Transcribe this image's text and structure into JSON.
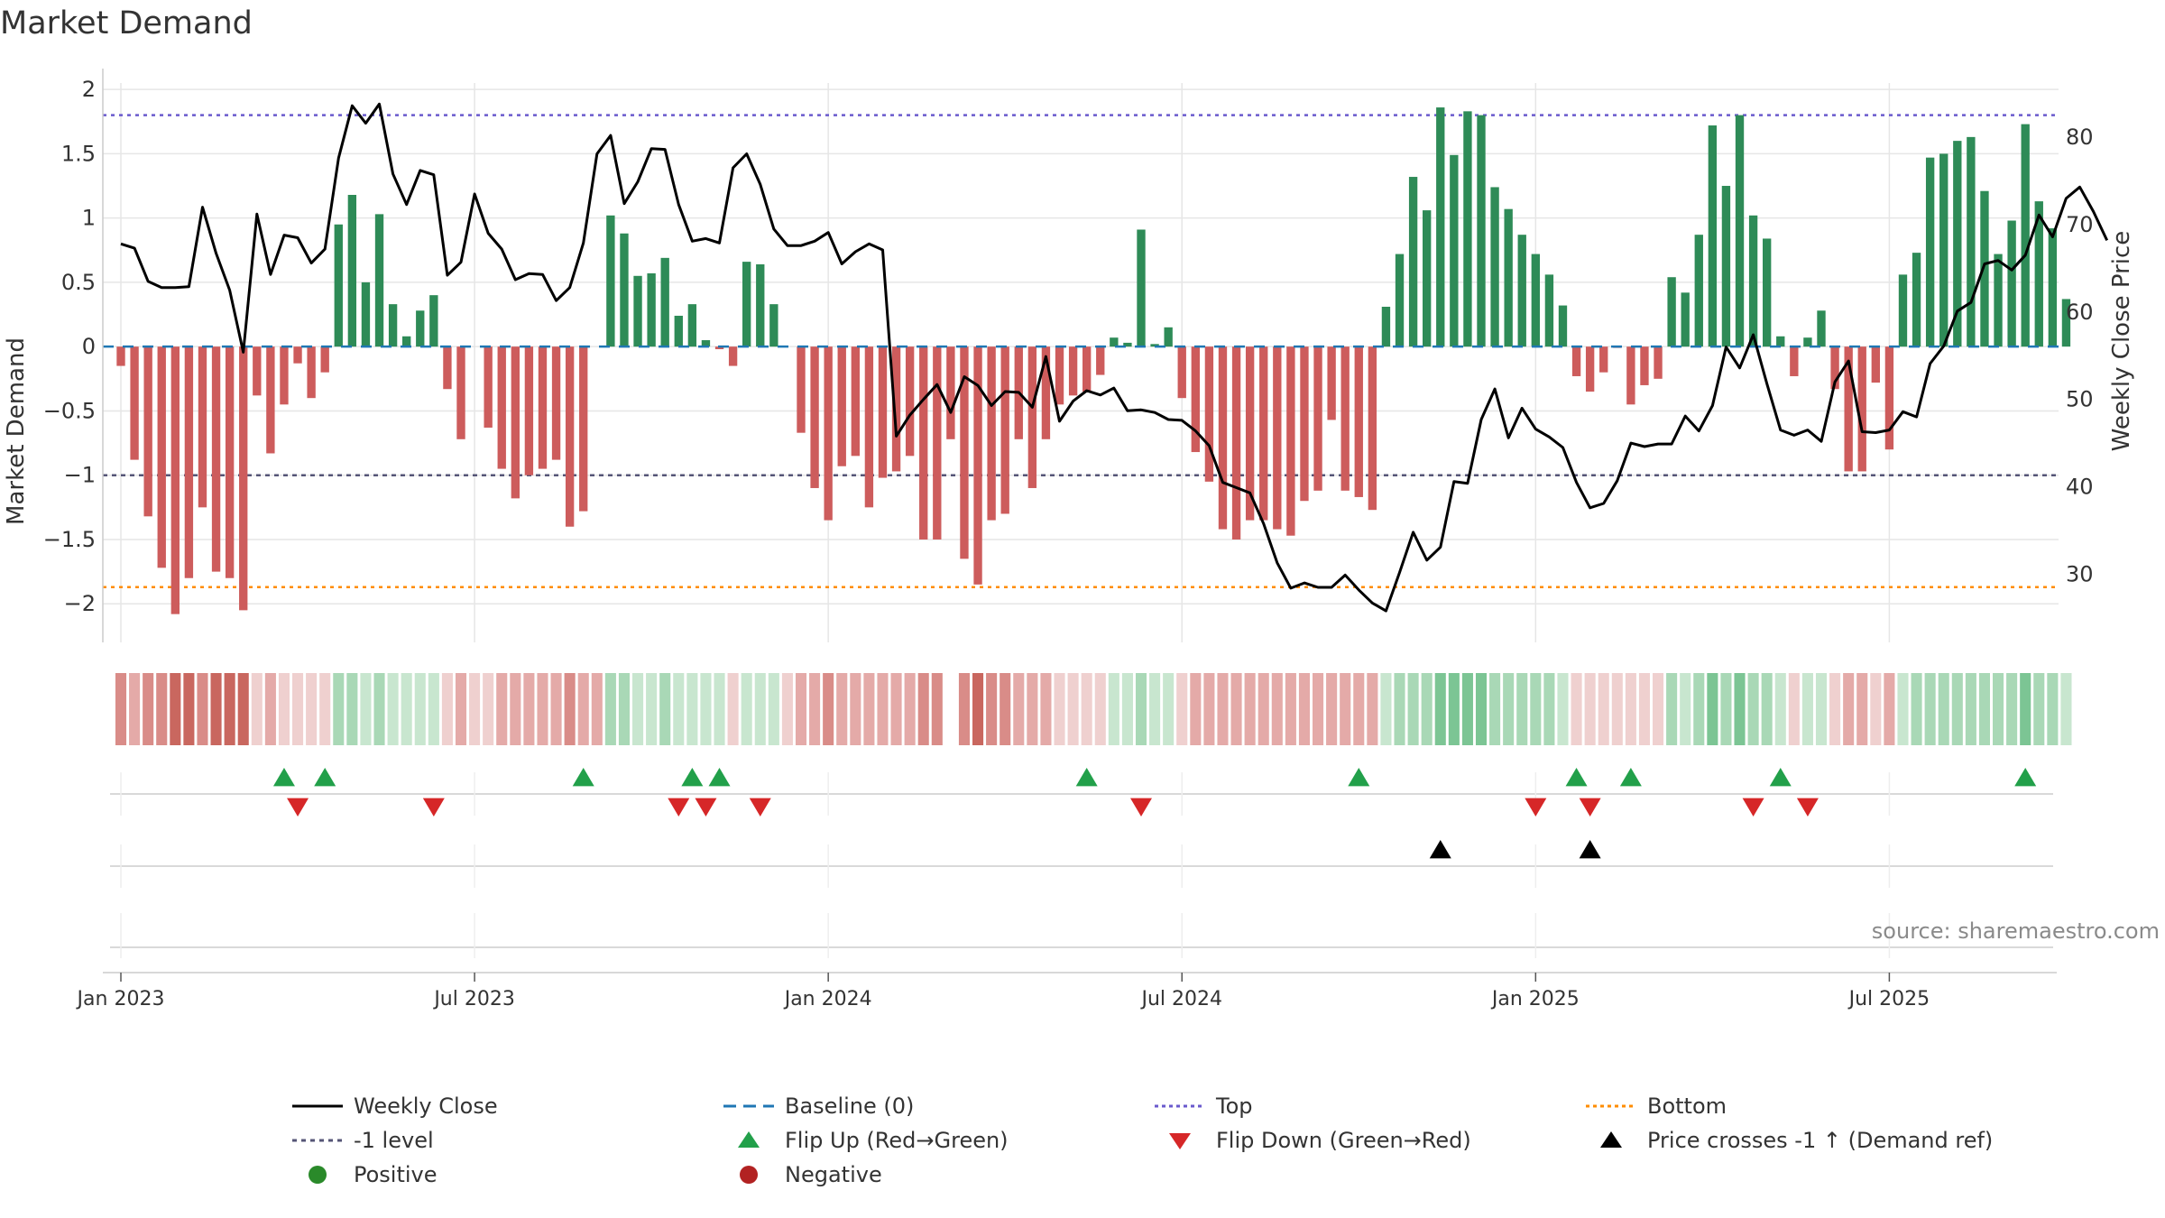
{
  "title": "Market Demand",
  "source": "source: sharemaestro.com",
  "colors": {
    "positive": "#2e8b57",
    "negative": "#cd5c5c",
    "weekly_close": "#000000",
    "baseline": "#1f77b4",
    "top": "#6a5acd",
    "bottom": "#ff8c00",
    "minus_one": "#555577",
    "flip_up": "#22a04a",
    "flip_down": "#d62728",
    "cross": "#000000",
    "grid": "#e6e6e6"
  },
  "chart_data": {
    "type": "bar+line",
    "title": "Market Demand",
    "ylabel_left": "Market Demand",
    "ylabel_right": "Weekly Close Price",
    "ylim_left": [
      -2.3,
      2.05
    ],
    "ylim_right": [
      22.2,
      86.2
    ],
    "yticks_left": [
      "2",
      "1.5",
      "1",
      "0.5",
      "0",
      "−0.5",
      "−1",
      "−1.5",
      "−2"
    ],
    "yticks_left_values": [
      2,
      1.5,
      1,
      0.5,
      0,
      -0.5,
      -1,
      -1.5,
      -2
    ],
    "yticks_right": [
      "80",
      "70",
      "60",
      "50",
      "40",
      "30"
    ],
    "yticks_right_values": [
      80,
      70,
      60,
      50,
      40,
      30
    ],
    "x_tick_labels": [
      "Jan 2023",
      "Jul 2023",
      "Jan 2024",
      "Jul 2024",
      "Jan 2025",
      "Jul 2025"
    ],
    "x_tick_weeks": [
      0,
      26,
      52,
      78,
      104,
      130
    ],
    "first_week": "Jan 2023",
    "reference_lines": {
      "top": 1.8,
      "bottom": -1.87,
      "minus_one": -1.0,
      "baseline": 0
    },
    "demand": [
      -0.15,
      -0.88,
      -1.32,
      -1.72,
      -2.08,
      -1.8,
      -1.25,
      -1.75,
      -1.8,
      -2.05,
      -0.38,
      -0.83,
      -0.45,
      -0.13,
      -0.4,
      -0.2,
      0.95,
      1.18,
      0.5,
      1.03,
      0.33,
      0.08,
      0.28,
      0.4,
      -0.33,
      -0.72,
      0,
      -0.63,
      -0.95,
      -1.18,
      -1.0,
      -0.95,
      -0.88,
      -1.4,
      -1.28,
      0,
      1.02,
      0.88,
      0.55,
      0.57,
      0.69,
      0.24,
      0.33,
      0.05,
      -0.02,
      -0.15,
      0.66,
      0.64,
      0.33,
      0,
      -0.67,
      -1.1,
      -1.35,
      -0.93,
      -0.85,
      -1.25,
      -1.02,
      -0.97,
      -0.85,
      -1.5,
      -1.5,
      -0.72,
      -1.65,
      -1.85,
      -1.35,
      -1.3,
      -0.72,
      -1.1,
      -0.72,
      -0.45,
      -0.38,
      -0.35,
      -0.22,
      0.07,
      0.03,
      0.91,
      0.02,
      0.15,
      -0.4,
      -0.82,
      -1.05,
      -1.42,
      -1.5,
      -1.35,
      -1.35,
      -1.42,
      -1.47,
      -1.2,
      -1.12,
      -0.57,
      -1.12,
      -1.17,
      -1.27,
      0.31,
      0.72,
      1.32,
      1.06,
      1.86,
      1.49,
      1.83,
      1.8,
      1.24,
      1.07,
      0.87,
      0.72,
      0.56,
      0.32,
      -0.23,
      -0.35,
      -0.2,
      -0.01,
      -0.45,
      -0.3,
      -0.25,
      0.54,
      0.42,
      0.87,
      1.72,
      1.25,
      1.8,
      1.02,
      0.84,
      0.08,
      -0.23,
      0.07,
      0.28,
      -0.33,
      -0.97,
      -0.97,
      -0.28,
      -0.8,
      0.56,
      0.73,
      1.47,
      1.5,
      1.6,
      1.63,
      1.21,
      0.72,
      0.98,
      1.73,
      1.13,
      0.92,
      0.37
    ],
    "weekly_close": [
      67.8,
      67.3,
      63.5,
      62.8,
      62.8,
      62.9,
      72,
      66.7,
      62.5,
      55.4,
      71.2,
      64.3,
      68.8,
      68.5,
      65.6,
      67.2,
      77.6,
      83.6,
      81.6,
      83.8,
      75.8,
      72.3,
      76.2,
      75.7,
      64.2,
      65.7,
      73.5,
      69,
      67.2,
      63.7,
      64.4,
      64.3,
      61.3,
      62.8,
      67.9,
      78.1,
      80.2,
      72.4,
      74.9,
      78.7,
      78.6,
      72.3,
      68.1,
      68.4,
      67.9,
      76.5,
      78.1,
      74.6,
      69.5,
      67.6,
      67.6,
      68.1,
      69.1,
      65.5,
      66.9,
      67.8,
      67.1,
      45.8,
      48.2,
      50,
      51.7,
      48.5,
      52.6,
      51.6,
      49.3,
      50.9,
      50.8,
      49.1,
      54.9,
      47.5,
      49.8,
      51,
      50.5,
      51.3,
      48.7,
      48.8,
      48.5,
      47.7,
      47.6,
      46.4,
      44.7,
      40.5,
      39.9,
      39.3,
      35.8,
      31.3,
      28.4,
      29,
      28.5,
      28.5,
      29.9,
      28.2,
      26.7,
      25.8,
      30.2,
      34.8,
      31.6,
      33.1,
      40.6,
      40.4,
      47.7,
      51.2,
      45.6,
      49,
      46.6,
      45.7,
      44.5,
      40.5,
      37.6,
      38.1,
      40.7,
      45,
      44.6,
      44.9,
      44.9,
      48.1,
      46.4,
      49.3,
      56,
      53.6,
      57.4,
      51.8,
      46.5,
      45.9,
      46.5,
      45.2,
      52,
      54.4,
      46.3,
      46.2,
      46.5,
      48.6,
      48,
      54.1,
      56.1,
      60.1,
      61.1,
      65.5,
      65.9,
      64.8,
      66.5,
      71.1,
      68.6,
      73,
      74.3,
      71.5,
      68.2
    ],
    "heatmap": [
      -3,
      -2,
      -3,
      -3,
      -4,
      -4,
      -3,
      -4,
      -4,
      -4,
      -1,
      -2,
      -1,
      -1,
      -1,
      -1,
      2,
      2,
      1,
      2,
      1,
      1,
      1,
      1,
      -1,
      -2,
      -1,
      -1,
      -2,
      -2,
      -2,
      -2,
      -2,
      -3,
      -2,
      -2,
      2,
      2,
      1,
      1,
      2,
      1,
      1,
      1,
      1,
      -1,
      1,
      1,
      1,
      -1,
      -2,
      -2,
      -3,
      -2,
      -2,
      -2,
      -2,
      -2,
      -2,
      -3,
      -3,
      0,
      -3,
      -4,
      -3,
      -3,
      -2,
      -2,
      -2,
      -1,
      -1,
      -1,
      -1,
      1,
      1,
      2,
      1,
      1,
      -1,
      -2,
      -2,
      -2,
      -2,
      -2,
      -2,
      -2,
      -2,
      -2,
      -2,
      -2,
      -2,
      -2,
      -2,
      1,
      2,
      2,
      2,
      3,
      3,
      3,
      3,
      2,
      2,
      2,
      2,
      2,
      1,
      -1,
      -1,
      -1,
      -1,
      -1,
      -1,
      -1,
      2,
      1,
      2,
      3,
      2,
      3,
      2,
      2,
      1,
      -1,
      1,
      1,
      -1,
      -2,
      -2,
      -1,
      -2,
      1,
      2,
      2,
      2,
      2,
      2,
      2,
      2,
      2,
      3,
      2,
      2,
      1
    ],
    "flip_up_weeks": [
      12,
      15,
      34,
      42,
      44,
      71,
      91,
      107,
      111,
      122,
      140
    ],
    "flip_down_weeks": [
      13,
      23,
      41,
      43,
      47,
      75,
      104,
      108,
      120,
      124
    ],
    "price_cross_weeks": [
      97,
      108
    ]
  },
  "legend": [
    {
      "label": "Weekly Close",
      "icon": "solid-line"
    },
    {
      "label": "Baseline (0)",
      "icon": "dashed-line"
    },
    {
      "label": "Top",
      "icon": "dotted-line"
    },
    {
      "label": "Bottom",
      "icon": "dotted-line"
    },
    {
      "label": "-1 level",
      "icon": "dotted-line"
    },
    {
      "label": "Flip Up (Red→Green)",
      "icon": "triangle-up"
    },
    {
      "label": "Flip Down (Green→Red)",
      "icon": "triangle-down"
    },
    {
      "label": "Price crosses -1 ↑ (Demand ref)",
      "icon": "triangle-up"
    },
    {
      "label": "Positive",
      "icon": "circle"
    },
    {
      "label": "Negative",
      "icon": "circle"
    }
  ]
}
